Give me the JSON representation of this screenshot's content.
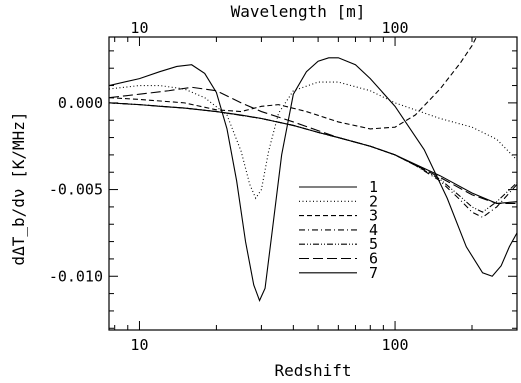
{
  "chart_data": {
    "type": "line",
    "xlabel": "Redshift",
    "ylabel": "dΔT_b/dν [K/MHz]",
    "top_xlabel": "Wavelength [m]",
    "xscale": "log",
    "xlim": [
      7.6,
      300
    ],
    "ylim": [
      -0.0131,
      0.0038
    ],
    "x_ticks": [
      {
        "value": 10,
        "label": "10"
      },
      {
        "value": 100,
        "label": "100"
      }
    ],
    "y_ticks": [
      {
        "value": 0.0,
        "label": "0.000"
      },
      {
        "value": -0.005,
        "label": "-0.005"
      },
      {
        "value": -0.01,
        "label": "-0.010"
      }
    ],
    "top_ticks": [
      {
        "value": 10,
        "label": "10"
      },
      {
        "value": 100,
        "label": "100"
      }
    ],
    "legend_position": "center-right",
    "series": [
      {
        "name": "1",
        "dash": "solid",
        "points": [
          [
            7.6,
            0.0
          ],
          [
            10,
            -0.0001
          ],
          [
            12,
            -0.0002
          ],
          [
            15,
            -0.0003
          ],
          [
            20,
            -0.0005
          ],
          [
            25,
            -0.0007
          ],
          [
            30,
            -0.0009
          ],
          [
            40,
            -0.0013
          ],
          [
            50,
            -0.0017
          ],
          [
            60,
            -0.002
          ],
          [
            80,
            -0.0025
          ],
          [
            100,
            -0.003
          ],
          [
            150,
            -0.0042
          ],
          [
            200,
            -0.0052
          ],
          [
            250,
            -0.0058
          ],
          [
            300,
            -0.0057
          ]
        ]
      },
      {
        "name": "2",
        "dash": "dotted",
        "points": [
          [
            7.6,
            0.0008
          ],
          [
            10,
            0.001
          ],
          [
            12,
            0.001
          ],
          [
            15,
            0.0008
          ],
          [
            18,
            0.0003
          ],
          [
            22,
            -0.0007
          ],
          [
            25,
            -0.0028
          ],
          [
            27,
            -0.0047
          ],
          [
            28.5,
            -0.0055
          ],
          [
            30,
            -0.005
          ],
          [
            32,
            -0.0028
          ],
          [
            35,
            -0.0006
          ],
          [
            40,
            0.0007
          ],
          [
            50,
            0.0012
          ],
          [
            60,
            0.0012
          ],
          [
            80,
            0.0007
          ],
          [
            100,
            0.0
          ],
          [
            150,
            -0.0009
          ],
          [
            200,
            -0.0014
          ],
          [
            250,
            -0.0021
          ],
          [
            300,
            -0.0033
          ]
        ]
      },
      {
        "name": "3",
        "dash": "dashed",
        "points": [
          [
            7.6,
            0.0003
          ],
          [
            10,
            0.0002
          ],
          [
            15,
            0.0
          ],
          [
            20,
            -0.0004
          ],
          [
            25,
            -0.0005
          ],
          [
            30,
            -0.0002
          ],
          [
            35,
            -0.0001
          ],
          [
            45,
            -0.0005
          ],
          [
            60,
            -0.0011
          ],
          [
            80,
            -0.0015
          ],
          [
            100,
            -0.0014
          ],
          [
            120,
            -0.0007
          ],
          [
            150,
            0.0008
          ],
          [
            180,
            0.0023
          ],
          [
            200,
            0.0033
          ],
          [
            215,
            0.0042
          ]
        ]
      },
      {
        "name": "4",
        "dash": "dashdot",
        "points": [
          [
            7.6,
            0.0
          ],
          [
            10,
            -0.0001
          ],
          [
            15,
            -0.0003
          ],
          [
            20,
            -0.0005
          ],
          [
            30,
            -0.0009
          ],
          [
            40,
            -0.0013
          ],
          [
            50,
            -0.0017
          ],
          [
            60,
            -0.002
          ],
          [
            80,
            -0.0025
          ],
          [
            100,
            -0.003
          ],
          [
            120,
            -0.0036
          ],
          [
            150,
            -0.0045
          ],
          [
            180,
            -0.0056
          ],
          [
            200,
            -0.0063
          ],
          [
            220,
            -0.0066
          ],
          [
            250,
            -0.006
          ],
          [
            300,
            -0.0047
          ]
        ]
      },
      {
        "name": "5",
        "dash": "dashdotdot",
        "points": [
          [
            7.6,
            0.0
          ],
          [
            10,
            -0.0001
          ],
          [
            15,
            -0.0003
          ],
          [
            20,
            -0.0005
          ],
          [
            30,
            -0.0009
          ],
          [
            40,
            -0.0013
          ],
          [
            50,
            -0.0017
          ],
          [
            60,
            -0.002
          ],
          [
            80,
            -0.0025
          ],
          [
            100,
            -0.003
          ],
          [
            120,
            -0.0036
          ],
          [
            150,
            -0.0044
          ],
          [
            180,
            -0.0054
          ],
          [
            200,
            -0.006
          ],
          [
            220,
            -0.0063
          ],
          [
            250,
            -0.0057
          ],
          [
            300,
            -0.0046
          ]
        ]
      },
      {
        "name": "6",
        "dash": "longdash",
        "points": [
          [
            7.6,
            0.0003
          ],
          [
            10,
            0.0005
          ],
          [
            13,
            0.0007
          ],
          [
            16,
            0.0009
          ],
          [
            20,
            0.0007
          ],
          [
            25,
            0.0
          ],
          [
            30,
            -0.0005
          ],
          [
            40,
            -0.0011
          ],
          [
            50,
            -0.0016
          ],
          [
            60,
            -0.002
          ],
          [
            80,
            -0.0025
          ],
          [
            100,
            -0.003
          ],
          [
            150,
            -0.0043
          ],
          [
            200,
            -0.0053
          ],
          [
            250,
            -0.0058
          ],
          [
            300,
            -0.0058
          ]
        ]
      },
      {
        "name": "7",
        "dash": "solid",
        "points": [
          [
            7.6,
            0.001
          ],
          [
            10,
            0.0014
          ],
          [
            12,
            0.0018
          ],
          [
            14,
            0.0021
          ],
          [
            16,
            0.0022
          ],
          [
            18,
            0.0017
          ],
          [
            20,
            0.0006
          ],
          [
            22,
            -0.0015
          ],
          [
            24,
            -0.0045
          ],
          [
            26,
            -0.008
          ],
          [
            28,
            -0.0105
          ],
          [
            29.5,
            -0.0114
          ],
          [
            31,
            -0.0107
          ],
          [
            33,
            -0.0075
          ],
          [
            36,
            -0.003
          ],
          [
            40,
            0.0005
          ],
          [
            45,
            0.0018
          ],
          [
            50,
            0.0024
          ],
          [
            55,
            0.0026
          ],
          [
            60,
            0.0026
          ],
          [
            70,
            0.0022
          ],
          [
            80,
            0.0014
          ],
          [
            100,
            -0.0002
          ],
          [
            130,
            -0.0027
          ],
          [
            160,
            -0.0055
          ],
          [
            190,
            -0.0083
          ],
          [
            220,
            -0.0098
          ],
          [
            240,
            -0.01
          ],
          [
            260,
            -0.0094
          ],
          [
            280,
            -0.0083
          ],
          [
            300,
            -0.0075
          ]
        ]
      }
    ]
  }
}
